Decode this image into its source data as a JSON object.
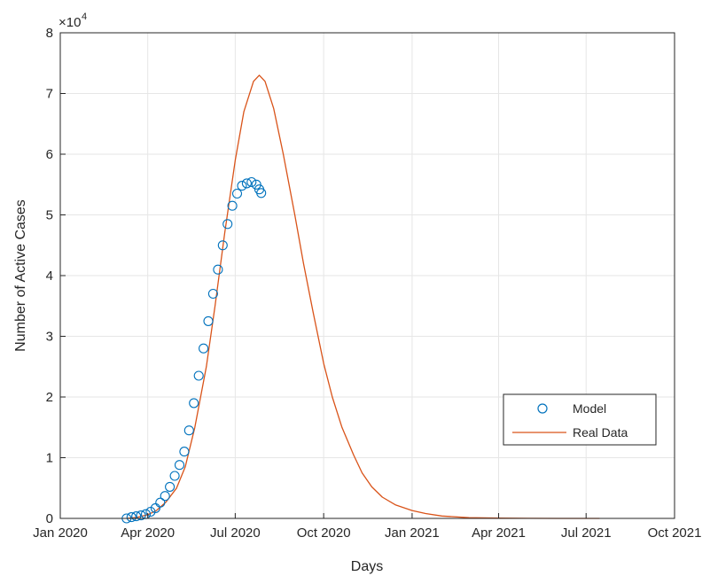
{
  "chart_data": {
    "type": "line",
    "title": "",
    "xlabel": "Days",
    "ylabel": "Number of Active Cases",
    "y_exponent_label": "×10",
    "y_exponent_power": "4",
    "xlim": [
      "2020-01-01",
      "2021-10-01"
    ],
    "ylim": [
      0,
      80000
    ],
    "x_ticks": [
      "2020-01-01",
      "2020-04-01",
      "2020-07-01",
      "2020-10-01",
      "2021-01-01",
      "2021-04-01",
      "2021-07-01",
      "2021-10-01"
    ],
    "x_tick_labels": [
      "Jan 2020",
      "Apr 2020",
      "Jul 2020",
      "Oct 2020",
      "Jan 2021",
      "Apr 2021",
      "Jul 2021",
      "Oct 2021"
    ],
    "y_ticks": [
      0,
      10000,
      20000,
      30000,
      40000,
      50000,
      60000,
      70000,
      80000
    ],
    "y_tick_labels": [
      "0",
      "1",
      "2",
      "3",
      "4",
      "5",
      "6",
      "7",
      "8"
    ],
    "grid": true,
    "legend_position": "lower-right",
    "colors": {
      "model": "#0072BD",
      "real_data": "#D95319"
    },
    "series": [
      {
        "name": "Model",
        "style": "circle-markers",
        "color": "#0072BD",
        "x": [
          "2020-03-10",
          "2020-03-15",
          "2020-03-20",
          "2020-03-25",
          "2020-03-30",
          "2020-04-04",
          "2020-04-09",
          "2020-04-14",
          "2020-04-19",
          "2020-04-24",
          "2020-04-29",
          "2020-05-04",
          "2020-05-09",
          "2020-05-14",
          "2020-05-19",
          "2020-05-24",
          "2020-05-29",
          "2020-06-03",
          "2020-06-08",
          "2020-06-13",
          "2020-06-18",
          "2020-06-23",
          "2020-06-28",
          "2020-07-03",
          "2020-07-08",
          "2020-07-13",
          "2020-07-18",
          "2020-07-23",
          "2020-07-26",
          "2020-07-28"
        ],
        "y": [
          0,
          200,
          350,
          500,
          700,
          1100,
          1700,
          2600,
          3700,
          5200,
          7000,
          8800,
          11000,
          14500,
          19000,
          23500,
          28000,
          32500,
          37000,
          41000,
          45000,
          48500,
          51500,
          53500,
          54800,
          55200,
          55400,
          55000,
          54200,
          53600
        ]
      },
      {
        "name": "Real Data",
        "style": "line",
        "color": "#D95319",
        "x": [
          "2020-03-10",
          "2020-03-20",
          "2020-04-01",
          "2020-04-10",
          "2020-04-20",
          "2020-05-01",
          "2020-05-10",
          "2020-05-20",
          "2020-06-01",
          "2020-06-10",
          "2020-06-20",
          "2020-07-01",
          "2020-07-10",
          "2020-07-20",
          "2020-07-26",
          "2020-08-01",
          "2020-08-10",
          "2020-08-20",
          "2020-09-01",
          "2020-09-10",
          "2020-09-20",
          "2020-10-01",
          "2020-10-10",
          "2020-10-20",
          "2020-11-01",
          "2020-11-10",
          "2020-11-20",
          "2020-12-01",
          "2020-12-15",
          "2021-01-01",
          "2021-01-15",
          "2021-02-01",
          "2021-03-01",
          "2021-04-01",
          "2021-05-01",
          "2021-06-01",
          "2021-07-01",
          "2021-07-15"
        ],
        "y": [
          0,
          150,
          600,
          1300,
          2700,
          5000,
          8500,
          15000,
          25000,
          35000,
          47000,
          59000,
          67000,
          72000,
          73000,
          72000,
          67500,
          60000,
          50000,
          42000,
          34000,
          25500,
          20000,
          15000,
          10500,
          7500,
          5200,
          3500,
          2200,
          1300,
          800,
          400,
          120,
          40,
          10,
          0,
          0,
          0
        ]
      }
    ]
  }
}
